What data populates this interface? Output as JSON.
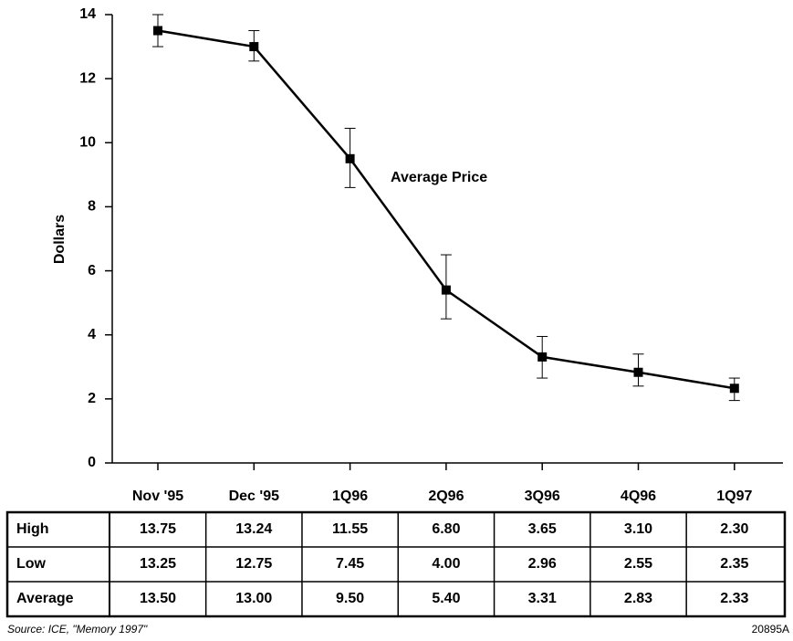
{
  "chart_data": {
    "type": "line",
    "y_label": "Dollars",
    "annotation": "Average Price",
    "categories": [
      "Nov '95",
      "Dec '95",
      "1Q96",
      "2Q96",
      "3Q96",
      "4Q96",
      "1Q97"
    ],
    "values": [
      13.5,
      13.0,
      9.5,
      5.4,
      3.31,
      2.83,
      2.33
    ],
    "error_high": [
      14.0,
      13.5,
      10.45,
      6.5,
      3.95,
      3.4,
      2.65
    ],
    "error_low": [
      13.0,
      12.55,
      8.6,
      4.5,
      2.65,
      2.4,
      1.95
    ],
    "color": "#000000",
    "ylim": [
      0,
      14
    ],
    "yticks": [
      0,
      2,
      4,
      6,
      8,
      10,
      12,
      14
    ]
  },
  "table": {
    "rows": [
      [
        "High",
        "13.75",
        "13.24",
        "11.55",
        "6.80",
        "3.65",
        "3.10",
        "2.30"
      ],
      [
        "Low",
        "13.25",
        "12.75",
        "7.45",
        "4.00",
        "2.96",
        "2.55",
        "2.35"
      ],
      [
        "Average",
        "13.50",
        "13.00",
        "9.50",
        "5.40",
        "3.31",
        "2.83",
        "2.33"
      ]
    ]
  },
  "footer": {
    "source": "Source: ICE, \"Memory 1997\"",
    "code": "20895A"
  }
}
